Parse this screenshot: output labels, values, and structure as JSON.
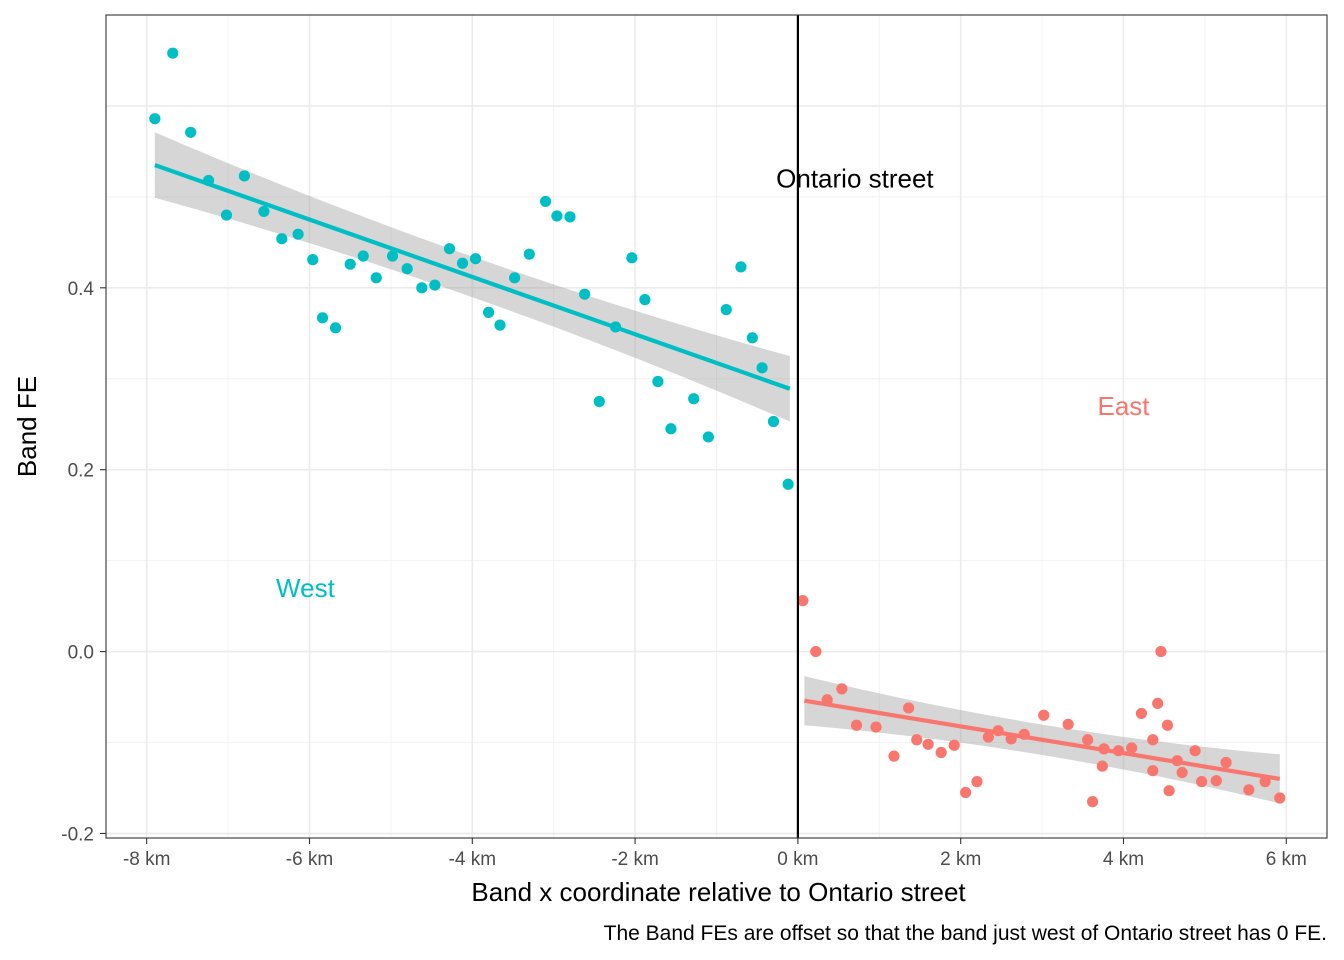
{
  "chart_data": {
    "type": "scatter",
    "xlabel": "Band x coordinate relative to Ontario street",
    "ylabel": "Band FE",
    "caption": "The Band FEs are offset so that the band just west of Ontario street has 0 FE.",
    "xlim": [
      -8.5,
      6.5
    ],
    "ylim": [
      -0.205,
      0.7
    ],
    "grid": true,
    "x_ticks": [
      -8,
      -6,
      -4,
      -2,
      0,
      2,
      4,
      6
    ],
    "x_tick_labels": [
      "-8 km",
      "-6 km",
      "-4 km",
      "-2 km",
      "0 km",
      "2 km",
      "4 km",
      "6 km"
    ],
    "y_ticks": [
      -0.2,
      0.0,
      0.2,
      0.4
    ],
    "y_tick_labels": [
      "-0.2",
      "0.0",
      "0.2",
      "0.4"
    ],
    "vline": {
      "x": 0,
      "label": "Ontario street",
      "label_y": 0.52
    },
    "colors": {
      "west": "#00BFC4",
      "east": "#F8766D",
      "ribbon": "#999999",
      "vline": "#000000"
    },
    "series": [
      {
        "name": "West",
        "label_pos": {
          "x": -6.05,
          "y": 0.07
        },
        "color": "#00BFC4",
        "fit": {
          "x": [
            -7.9,
            -0.1
          ],
          "y": [
            0.535,
            0.289
          ],
          "ci_half_width": [
            0.036,
            0.036
          ]
        },
        "points": [
          [
            -7.9,
            0.586
          ],
          [
            -7.68,
            0.658
          ],
          [
            -7.46,
            0.571
          ],
          [
            -7.24,
            0.518
          ],
          [
            -7.02,
            0.48
          ],
          [
            -6.8,
            0.523
          ],
          [
            -6.56,
            0.484
          ],
          [
            -6.34,
            0.454
          ],
          [
            -6.14,
            0.459
          ],
          [
            -5.96,
            0.431
          ],
          [
            -5.84,
            0.367
          ],
          [
            -5.68,
            0.356
          ],
          [
            -5.5,
            0.426
          ],
          [
            -5.34,
            0.435
          ],
          [
            -5.18,
            0.411
          ],
          [
            -4.98,
            0.435
          ],
          [
            -4.8,
            0.421
          ],
          [
            -4.62,
            0.4
          ],
          [
            -4.46,
            0.403
          ],
          [
            -4.28,
            0.443
          ],
          [
            -4.12,
            0.427
          ],
          [
            -3.96,
            0.432
          ],
          [
            -3.8,
            0.373
          ],
          [
            -3.66,
            0.359
          ],
          [
            -3.48,
            0.411
          ],
          [
            -3.3,
            0.437
          ],
          [
            -3.1,
            0.495
          ],
          [
            -2.96,
            0.479
          ],
          [
            -2.8,
            0.478
          ],
          [
            -2.62,
            0.393
          ],
          [
            -2.44,
            0.275
          ],
          [
            -2.24,
            0.357
          ],
          [
            -2.04,
            0.433
          ],
          [
            -1.88,
            0.387
          ],
          [
            -1.72,
            0.297
          ],
          [
            -1.56,
            0.245
          ],
          [
            -1.28,
            0.278
          ],
          [
            -1.1,
            0.236
          ],
          [
            -0.88,
            0.376
          ],
          [
            -0.7,
            0.423
          ],
          [
            -0.56,
            0.345
          ],
          [
            -0.44,
            0.312
          ],
          [
            -0.3,
            0.253
          ],
          [
            -0.12,
            0.184
          ]
        ]
      },
      {
        "name": "East",
        "label_pos": {
          "x": 4.0,
          "y": 0.27
        },
        "color": "#F8766D",
        "fit": {
          "x": [
            0.08,
            5.92
          ],
          "y": [
            -0.054,
            -0.14
          ],
          "ci_half_width": [
            0.027,
            0.027
          ]
        },
        "points": [
          [
            0.06,
            0.056
          ],
          [
            0.22,
            0.0
          ],
          [
            0.36,
            -0.053
          ],
          [
            0.54,
            -0.041
          ],
          [
            0.72,
            -0.081
          ],
          [
            0.96,
            -0.083
          ],
          [
            1.18,
            -0.115
          ],
          [
            1.36,
            -0.062
          ],
          [
            1.46,
            -0.097
          ],
          [
            1.6,
            -0.102
          ],
          [
            1.76,
            -0.111
          ],
          [
            1.92,
            -0.103
          ],
          [
            2.06,
            -0.155
          ],
          [
            2.2,
            -0.143
          ],
          [
            2.34,
            -0.094
          ],
          [
            2.46,
            -0.087
          ],
          [
            2.62,
            -0.096
          ],
          [
            2.78,
            -0.091
          ],
          [
            3.02,
            -0.07
          ],
          [
            3.32,
            -0.08
          ],
          [
            3.56,
            -0.097
          ],
          [
            3.62,
            -0.165
          ],
          [
            3.74,
            -0.126
          ],
          [
            3.76,
            -0.107
          ],
          [
            3.94,
            -0.109
          ],
          [
            4.1,
            -0.106
          ],
          [
            4.22,
            -0.068
          ],
          [
            4.36,
            -0.131
          ],
          [
            4.36,
            -0.097
          ],
          [
            4.42,
            -0.057
          ],
          [
            4.46,
            0.0
          ],
          [
            4.54,
            -0.081
          ],
          [
            4.56,
            -0.153
          ],
          [
            4.66,
            -0.12
          ],
          [
            4.72,
            -0.133
          ],
          [
            4.88,
            -0.109
          ],
          [
            4.96,
            -0.143
          ],
          [
            5.14,
            -0.142
          ],
          [
            5.26,
            -0.122
          ],
          [
            5.54,
            -0.152
          ],
          [
            5.74,
            -0.143
          ],
          [
            5.92,
            -0.161
          ]
        ]
      }
    ]
  }
}
